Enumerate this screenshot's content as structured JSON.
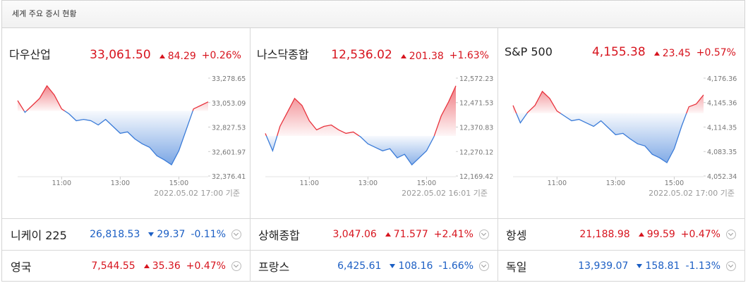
{
  "header": {
    "title": "세계 주요 증시 현황"
  },
  "colors": {
    "up": "#d7141e",
    "down": "#1c5fc4",
    "up_line": "#e8323c",
    "down_line": "#3a7bd8"
  },
  "chart_data": [
    {
      "type": "line",
      "title": "다우산업",
      "price": {
        "value": 33061.5,
        "label": "33,061.50"
      },
      "change": 84.29,
      "change_pct": {
        "value": 0.26,
        "label": "+0.26%"
      },
      "x": [
        9.5,
        9.75,
        10,
        10.25,
        10.5,
        10.75,
        11,
        11.25,
        11.5,
        11.75,
        12,
        12.25,
        12.5,
        12.75,
        13,
        13.25,
        13.5,
        13.75,
        14,
        14.25,
        14.5,
        14.75,
        15,
        15.25,
        15.5,
        15.75,
        16
      ],
      "values": [
        33072,
        32963,
        33027,
        33092,
        33208,
        33124,
        32995,
        32950,
        32886,
        32898,
        32886,
        32847,
        32898,
        32834,
        32770,
        32783,
        32718,
        32673,
        32641,
        32563,
        32525,
        32480,
        32609,
        32802,
        32995,
        33027,
        33060
      ],
      "xlim": [
        9.5,
        16
      ],
      "xticks": [
        {
          "value": 11,
          "label": "11:00"
        },
        {
          "value": 13,
          "label": "13:00"
        },
        {
          "value": 15,
          "label": "15:00"
        }
      ],
      "ylim": [
        32376.41,
        33278.65
      ],
      "yticks": [
        {
          "value": 32376.41,
          "label": "32,376.41"
        },
        {
          "value": 32601.97,
          "label": "32,601.97"
        },
        {
          "value": 32827.53,
          "label": "32,827.53"
        },
        {
          "value": 33053.09,
          "label": "33,053.09"
        },
        {
          "value": 33278.65,
          "label": "33,278.65"
        }
      ],
      "timestamp": "2022.05.02 17:00 기준"
    },
    {
      "type": "line",
      "title": "나스닥종합",
      "price": {
        "value": 12536.02,
        "label": "12,536.02"
      },
      "change": 201.38,
      "change_pct": {
        "value": 1.63,
        "label": "+1.63%"
      },
      "x": [
        9.5,
        9.75,
        10,
        10.25,
        10.5,
        10.75,
        11,
        11.25,
        11.5,
        11.75,
        12,
        12.25,
        12.5,
        12.75,
        13,
        13.25,
        13.5,
        13.75,
        14,
        14.25,
        14.5,
        14.75,
        15,
        15.25,
        15.5,
        15.75,
        16
      ],
      "values": [
        12344.9,
        12273.0,
        12373.7,
        12431.2,
        12488.8,
        12460.0,
        12396.7,
        12359.3,
        12373.7,
        12379.4,
        12359.3,
        12344.9,
        12350.7,
        12330.5,
        12301.8,
        12287.4,
        12273.0,
        12281.6,
        12244.2,
        12258.6,
        12215.5,
        12244.2,
        12273.0,
        12330.5,
        12416.8,
        12474.4,
        12540.6
      ],
      "xlim": [
        9.5,
        16
      ],
      "xticks": [
        {
          "value": 11,
          "label": "11:00"
        },
        {
          "value": 13,
          "label": "13:00"
        },
        {
          "value": 15,
          "label": "15:00"
        }
      ],
      "ylim": [
        12169.42,
        12572.23
      ],
      "yticks": [
        {
          "value": 12169.42,
          "label": "12,169.42"
        },
        {
          "value": 12270.12,
          "label": "12,270.12"
        },
        {
          "value": 12370.83,
          "label": "12,370.83"
        },
        {
          "value": 12471.53,
          "label": "12,471.53"
        },
        {
          "value": 12572.23,
          "label": "12,572.23"
        }
      ],
      "timestamp": "2022.05.02 16:01 기준"
    },
    {
      "type": "line",
      "title": "S&P 500",
      "price": {
        "value": 4155.38,
        "label": "4,155.38"
      },
      "change": 23.45,
      "change_pct": {
        "value": 0.57,
        "label": "+0.57%"
      },
      "x": [
        9.5,
        9.75,
        10,
        10.25,
        10.5,
        10.75,
        11,
        11.25,
        11.5,
        11.75,
        12,
        12.25,
        12.5,
        12.75,
        13,
        13.25,
        13.5,
        13.75,
        14,
        14.25,
        14.5,
        14.75,
        15,
        15.25,
        15.5,
        15.75,
        16
      ],
      "values": [
        4141.82,
        4119.68,
        4132.96,
        4141.82,
        4159.53,
        4150.67,
        4134.73,
        4128.53,
        4122.33,
        4124.1,
        4119.68,
        4115.25,
        4122.33,
        4113.48,
        4104.62,
        4106.39,
        4099.3,
        4093.1,
        4090.45,
        4079.82,
        4075.39,
        4069.19,
        4086.9,
        4115.25,
        4140.05,
        4143.59,
        4155.1
      ],
      "xlim": [
        9.5,
        16
      ],
      "xticks": [
        {
          "value": 11,
          "label": "11:00"
        },
        {
          "value": 13,
          "label": "13:00"
        },
        {
          "value": 15,
          "label": "15:00"
        }
      ],
      "ylim": [
        4052.34,
        4176.36
      ],
      "yticks": [
        {
          "value": 4052.34,
          "label": "4,052.34"
        },
        {
          "value": 4083.35,
          "label": "4,083.35"
        },
        {
          "value": 4114.35,
          "label": "4,114.35"
        },
        {
          "value": 4145.36,
          "label": "4,145.36"
        },
        {
          "value": 4176.36,
          "label": "4,176.36"
        }
      ],
      "timestamp": "2022.05.02 17:00 기준"
    }
  ],
  "markets": [
    {
      "name": "니케이 225",
      "price": "26,818.53",
      "change": {
        "value": -29.37,
        "label": "29.37"
      },
      "change_pct": {
        "value": -0.11,
        "label": "-0.11%"
      }
    },
    {
      "name": "상해종합",
      "price": "3,047.06",
      "change": {
        "value": 71.577,
        "label": "71.577"
      },
      "change_pct": {
        "value": 2.41,
        "label": "+2.41%"
      }
    },
    {
      "name": "항셍",
      "price": "21,188.98",
      "change": {
        "value": 99.59,
        "label": "99.59"
      },
      "change_pct": {
        "value": 0.47,
        "label": "+0.47%"
      }
    },
    {
      "name": "영국",
      "price": "7,544.55",
      "change": {
        "value": 35.36,
        "label": "35.36"
      },
      "change_pct": {
        "value": 0.47,
        "label": "+0.47%"
      }
    },
    {
      "name": "프랑스",
      "price": "6,425.61",
      "change": {
        "value": -108.16,
        "label": "108.16"
      },
      "change_pct": {
        "value": -1.66,
        "label": "-1.66%"
      }
    },
    {
      "name": "독일",
      "price": "13,939.07",
      "change": {
        "value": -158.81,
        "label": "158.81"
      },
      "change_pct": {
        "value": -1.13,
        "label": "-1.13%"
      }
    }
  ]
}
